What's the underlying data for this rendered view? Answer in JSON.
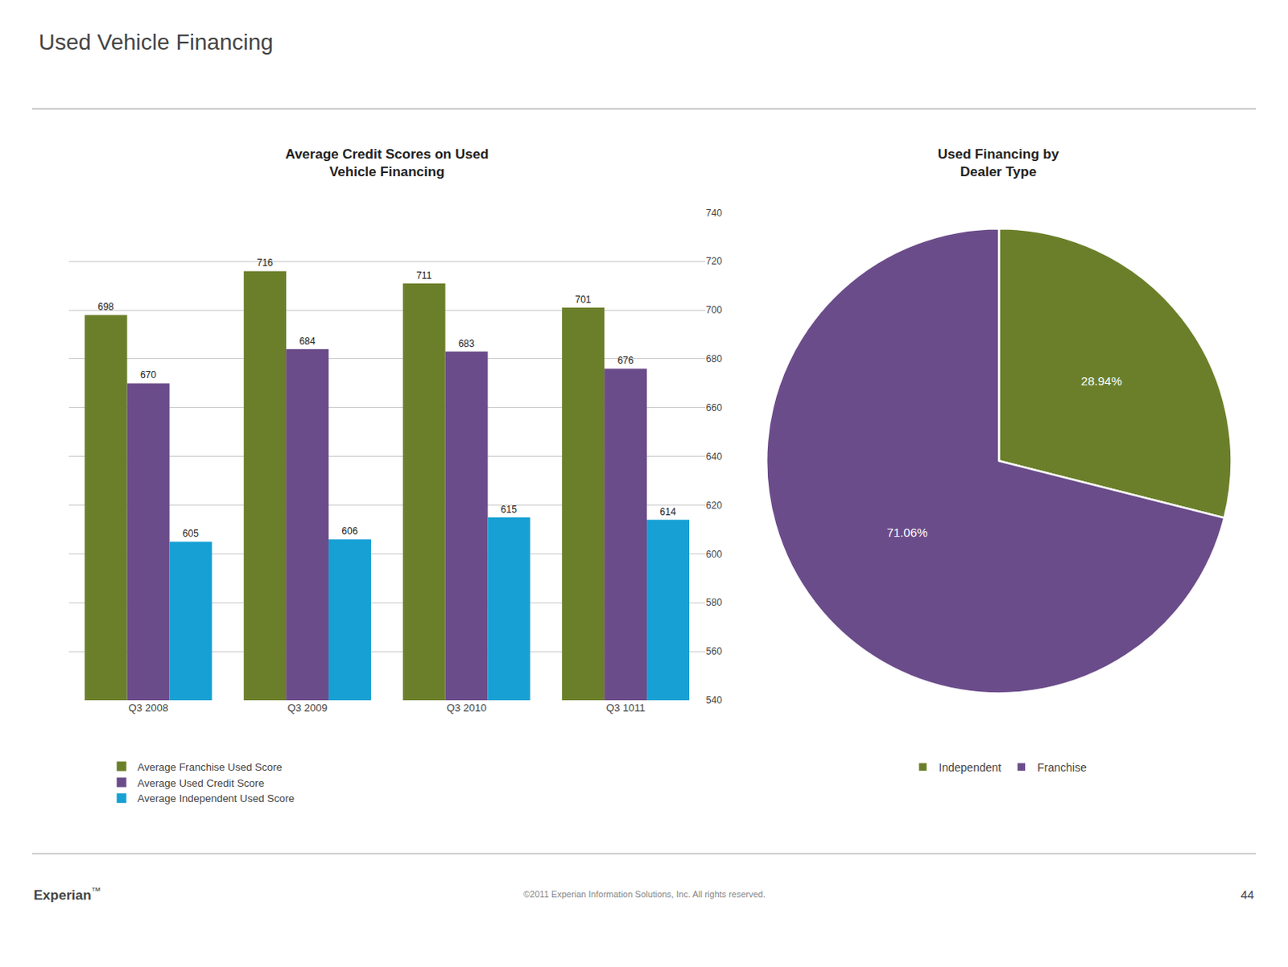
{
  "title": "Used Vehicle Financing",
  "annotations": [
    "Experian",
    "™",
    "©2011 Experian Information Solutions, Inc. All rights reserved.",
    "44"
  ],
  "chart_data": [
    {
      "type": "bar",
      "title": "Average Credit Scores on Used\nVehicle Financing",
      "categories": [
        "Q3 2008",
        "Q3 2009",
        "Q3 2010",
        "Q3 1011"
      ],
      "series": [
        {
          "name": "Average Franchise Used Score",
          "color": "#6b7f2a",
          "values": [
            698,
            716,
            711,
            701
          ]
        },
        {
          "name": "Average Used Credit Score",
          "color": "#6b4c8a",
          "values": [
            670,
            684,
            683,
            676
          ]
        },
        {
          "name": "Average Independent Used Score",
          "color": "#17a0d4",
          "values": [
            605,
            606,
            615,
            614
          ]
        }
      ],
      "ylim": [
        540,
        740
      ],
      "yticks": [
        540,
        560,
        580,
        600,
        620,
        640,
        660,
        680,
        700,
        720,
        740
      ],
      "grid": true,
      "data_labels": true,
      "legend": "bottom"
    },
    {
      "type": "pie",
      "title": "Used Financing by\nDealer Type",
      "categories": [
        "Independent",
        "Franchise"
      ],
      "values": [
        28.94,
        71.06
      ],
      "value_labels": [
        "28.94%",
        "71.06%"
      ],
      "colors": [
        "#6b7f2a",
        "#6b4c8a"
      ],
      "legend": "bottom"
    }
  ]
}
